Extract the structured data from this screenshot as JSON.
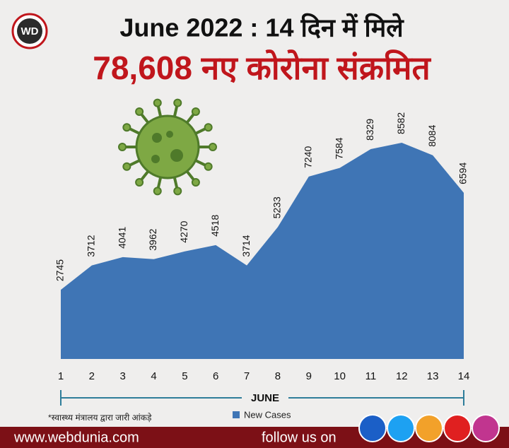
{
  "logo": "WD",
  "chart_data": {
    "type": "area",
    "title": "June 2022 : 14 दिन में मिले",
    "subtitle": "78,608 नए कोरोना संक्रमित",
    "x": [
      1,
      2,
      3,
      4,
      5,
      6,
      7,
      8,
      9,
      10,
      11,
      12,
      13,
      14
    ],
    "xlabel": "JUNE",
    "series": [
      {
        "name": "New Cases",
        "color": "#3f75b5",
        "values": [
          2745,
          3712,
          4041,
          3962,
          4270,
          4518,
          3714,
          5233,
          7240,
          7584,
          8329,
          8582,
          8084,
          6594
        ]
      }
    ],
    "note": "*स्वास्थ्य मंत्रालय द्वारा जारी आंकड़े"
  },
  "footer": {
    "website": "www.webdunia.com",
    "follow": "follow us on"
  }
}
